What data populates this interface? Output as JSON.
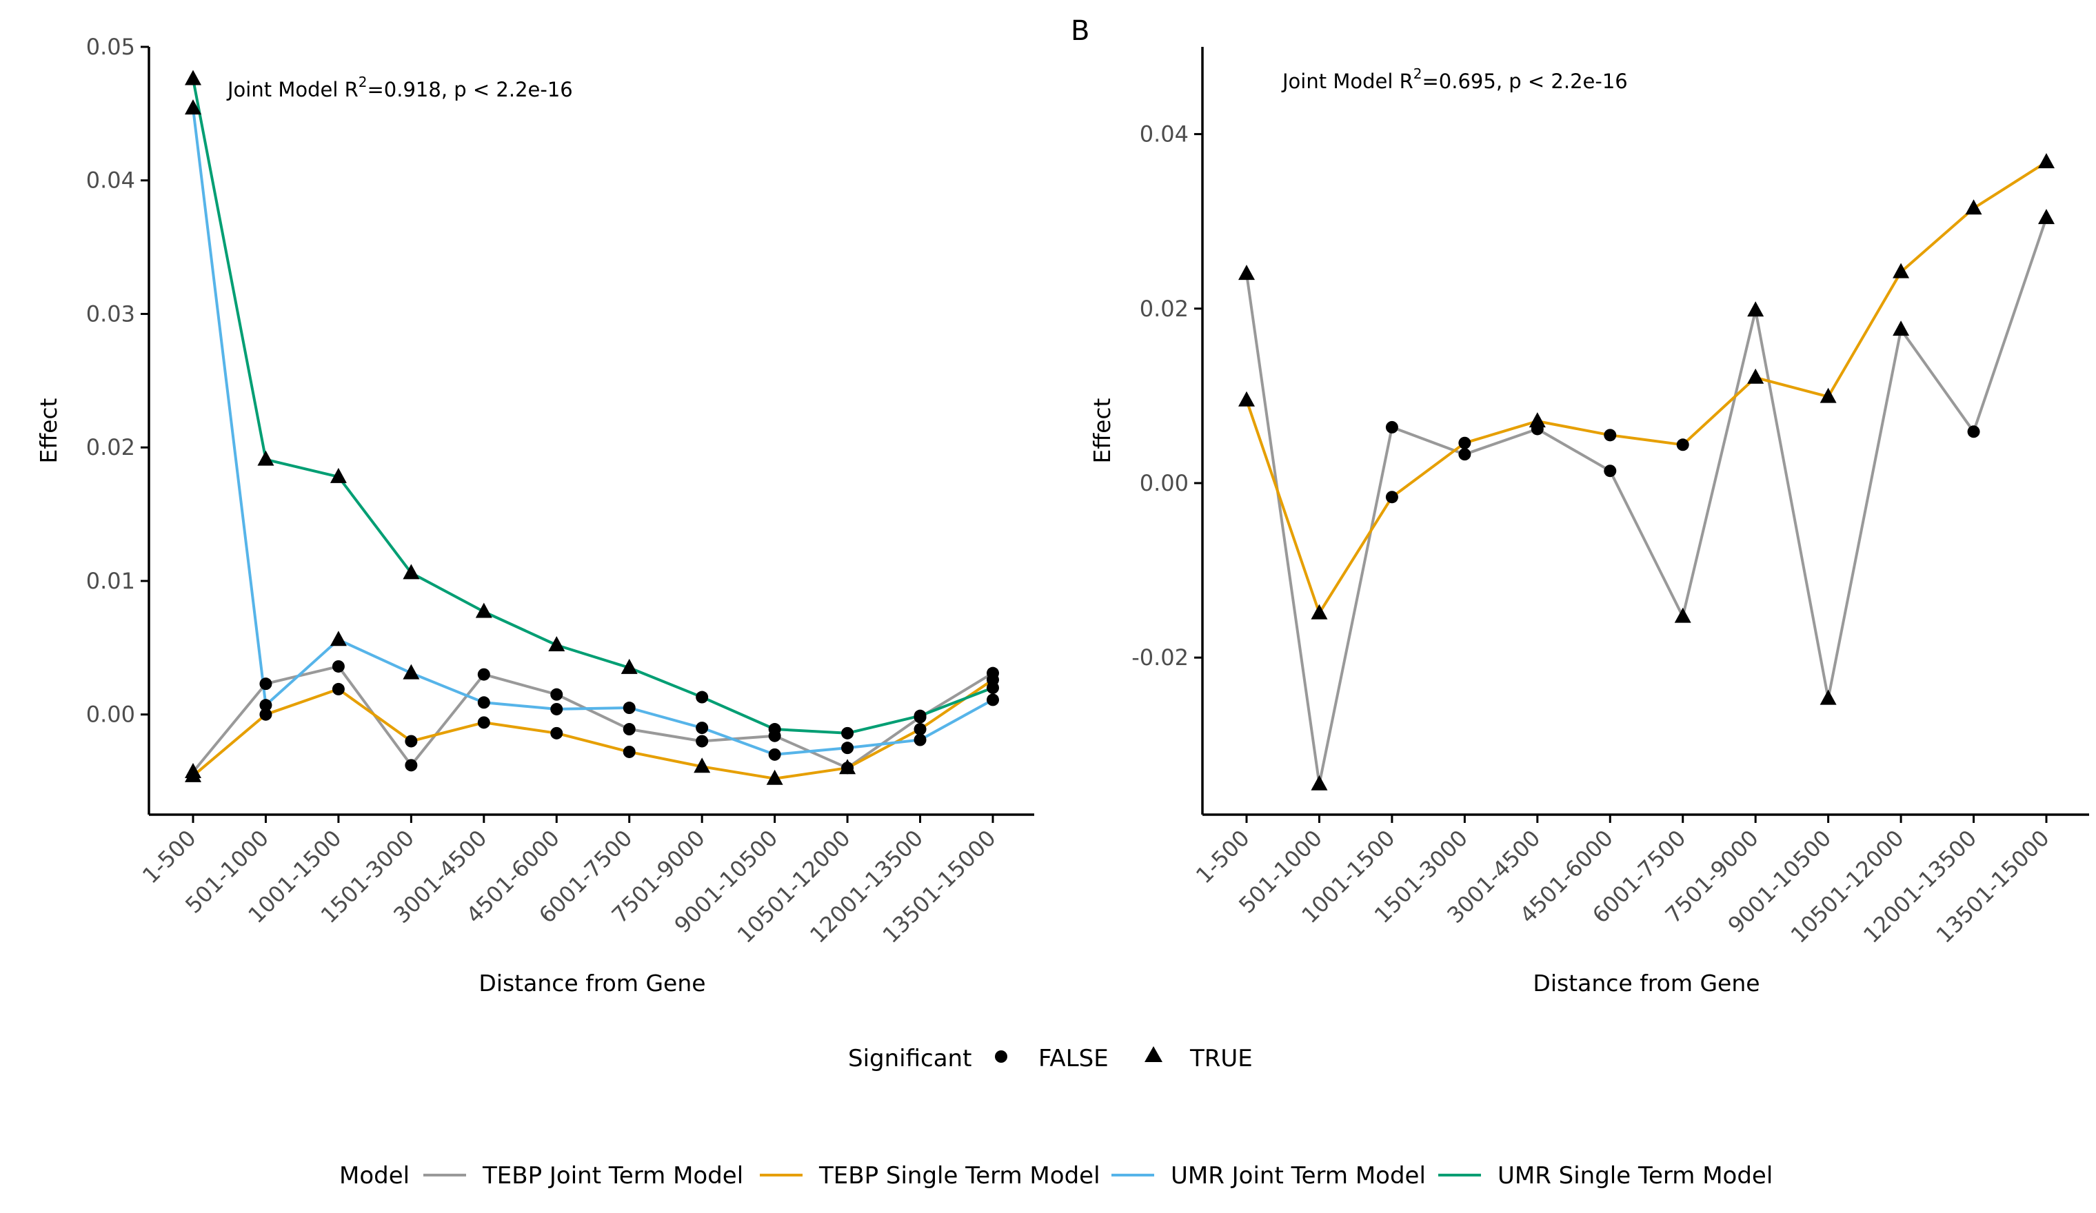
{
  "panel_labels": {
    "left": "",
    "right": "B"
  },
  "colors": {
    "tebp_joint": "#999999",
    "tebp_single": "#E69F00",
    "umr_joint": "#56B4E9",
    "umr_single": "#009E73",
    "marker": "#000000",
    "axis": "#000000",
    "tick_text": "#4d4d4d"
  },
  "legends": {
    "significant": {
      "title": "Significant",
      "items": [
        {
          "label": "FALSE",
          "shape": "circle"
        },
        {
          "label": "TRUE",
          "shape": "triangle"
        }
      ]
    },
    "model": {
      "title": "Model",
      "items": [
        {
          "label": "TEBP Joint Term Model",
          "color_key": "tebp_joint"
        },
        {
          "label": "TEBP Single Term Model",
          "color_key": "tebp_single"
        },
        {
          "label": "UMR Joint Term Model",
          "color_key": "umr_joint"
        },
        {
          "label": "UMR Single Term Model",
          "color_key": "umr_single"
        }
      ]
    }
  },
  "chart_data": [
    {
      "type": "line",
      "annotation": {
        "prefix": "Joint Model R",
        "sup": "2",
        "suffix": "=0.918, p < 2.2e-16"
      },
      "xlabel": "Distance from Gene",
      "ylabel": "Effect",
      "ylim": [
        -0.0075,
        0.05
      ],
      "yticks": [
        0.0,
        0.01,
        0.02,
        0.03,
        0.04,
        0.05
      ],
      "ytick_labels": [
        "0.00",
        "0.01",
        "0.02",
        "0.03",
        "0.04",
        "0.05"
      ],
      "categories": [
        "1-500",
        "501-1000",
        "1001-1500",
        "1501-3000",
        "3001-4500",
        "4501-6000",
        "6001-7500",
        "7501-9000",
        "9001-10500",
        "10501-12000",
        "12001-13500",
        "13501-15000"
      ],
      "series": [
        {
          "name": "TEBP Joint Term Model",
          "color_key": "tebp_joint",
          "values": [
            -0.0043,
            0.0023,
            0.0036,
            -0.0038,
            0.003,
            0.0015,
            -0.0011,
            -0.002,
            -0.0016,
            -0.004,
            -0.0002,
            0.0031
          ],
          "significant": [
            true,
            false,
            false,
            false,
            false,
            false,
            false,
            false,
            false,
            false,
            false,
            false
          ]
        },
        {
          "name": "TEBP Single Term Model",
          "color_key": "tebp_single",
          "values": [
            -0.0046,
            0.0,
            0.0019,
            -0.002,
            -0.0006,
            -0.0014,
            -0.0028,
            -0.0039,
            -0.0048,
            -0.004,
            -0.0011,
            0.0026
          ],
          "significant": [
            true,
            false,
            false,
            false,
            false,
            false,
            false,
            true,
            true,
            true,
            false,
            false
          ]
        },
        {
          "name": "UMR Joint Term Model",
          "color_key": "umr_joint",
          "values": [
            0.0454,
            0.0007,
            0.0056,
            0.0031,
            0.0009,
            0.0004,
            0.0005,
            -0.001,
            -0.003,
            -0.0025,
            -0.0019,
            0.0011
          ],
          "significant": [
            true,
            false,
            true,
            true,
            false,
            false,
            false,
            false,
            false,
            false,
            false,
            false
          ]
        },
        {
          "name": "UMR Single Term Model",
          "color_key": "umr_single",
          "values": [
            0.0476,
            0.0191,
            0.0178,
            0.0106,
            0.0077,
            0.0052,
            0.0035,
            0.0013,
            -0.0011,
            -0.0014,
            -0.0001,
            0.002
          ],
          "significant": [
            true,
            true,
            true,
            true,
            true,
            true,
            true,
            false,
            false,
            false,
            false,
            false
          ]
        }
      ]
    },
    {
      "type": "line",
      "annotation": {
        "prefix": "Joint Model R",
        "sup": "2",
        "suffix": "=0.695, p < 2.2e-16"
      },
      "xlabel": "Distance from Gene",
      "ylabel": "Effect",
      "ylim": [
        -0.038,
        0.05
      ],
      "yticks": [
        -0.02,
        0.0,
        0.02,
        0.04
      ],
      "ytick_labels": [
        "-0.02",
        "0.00",
        "0.02",
        "0.04"
      ],
      "categories": [
        "1-500",
        "501-1000",
        "1001-1500",
        "1501-3000",
        "3001-4500",
        "4501-6000",
        "6001-7500",
        "7501-9000",
        "9001-10500",
        "10501-12000",
        "12001-13500",
        "13501-15000"
      ],
      "series": [
        {
          "name": "TEBP Joint Term Model",
          "color_key": "tebp_joint",
          "values": [
            0.024,
            -0.0345,
            0.0064,
            0.0033,
            0.0062,
            0.0014,
            -0.0153,
            0.0198,
            -0.0247,
            0.0176,
            0.0059,
            0.0304
          ],
          "significant": [
            true,
            true,
            false,
            false,
            false,
            false,
            true,
            true,
            true,
            true,
            false,
            true
          ]
        },
        {
          "name": "TEBP Single Term Model",
          "color_key": "tebp_single",
          "values": [
            0.0095,
            -0.0149,
            -0.0016,
            0.0046,
            0.0071,
            0.0055,
            0.0044,
            0.0121,
            0.0099,
            0.0242,
            0.0315,
            0.0368
          ],
          "significant": [
            true,
            true,
            false,
            false,
            true,
            false,
            false,
            true,
            true,
            true,
            true,
            true
          ]
        }
      ]
    }
  ]
}
